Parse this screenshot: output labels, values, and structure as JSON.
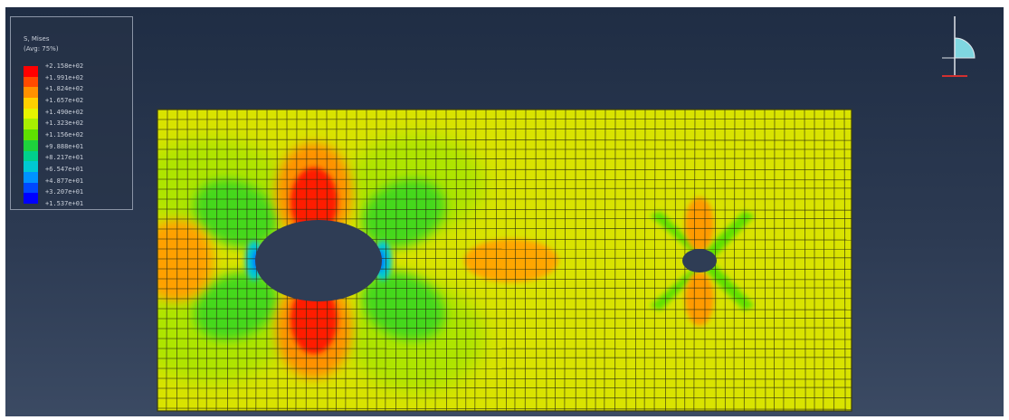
{
  "legend": {
    "title_line1": "S, Mises",
    "title_line2": "(Avg: 75%)",
    "ticks": [
      "+2.158e+02",
      "+1.991e+02",
      "+1.824e+02",
      "+1.657e+02",
      "+1.490e+02",
      "+1.323e+02",
      "+1.156e+02",
      "+9.888e+01",
      "+8.217e+01",
      "+6.547e+01",
      "+4.877e+01",
      "+3.207e+01",
      "+1.537e+01"
    ],
    "colors": [
      "#ff0000",
      "#ff4a00",
      "#ff9100",
      "#ffd100",
      "#e6f500",
      "#a8f000",
      "#5ee000",
      "#1ed23c",
      "#00d08c",
      "#00c8d2",
      "#0092ff",
      "#0048ff",
      "#0000ff"
    ]
  },
  "model": {
    "background_color": "#d9e300",
    "mesh_color": "#2a2a10"
  },
  "triad": {
    "axis_color": "#e0e4ea",
    "x_axis_color": "#d23030",
    "quadrant_color": "#7fd6e0"
  }
}
